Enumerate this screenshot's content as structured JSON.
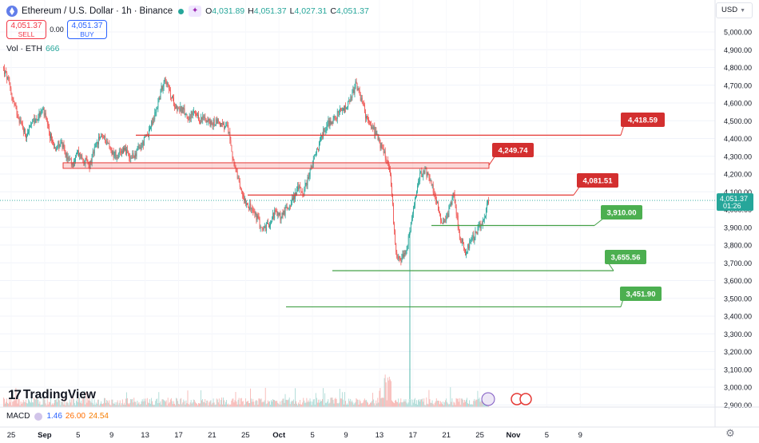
{
  "symbol": {
    "name": "Ethereum / U.S. Dollar",
    "interval": "1h",
    "exchange": "Binance",
    "separator": "·"
  },
  "ohlc": {
    "open_label": "O",
    "open": "4,031.89",
    "high_label": "H",
    "high": "4,051.37",
    "low_label": "L",
    "low": "4,027.31",
    "close_label": "C",
    "close": "4,051.37"
  },
  "trade": {
    "sell_price": "4,051.37",
    "sell_label": "SELL",
    "spread": "0.00",
    "buy_price": "4,051.37",
    "buy_label": "BUY"
  },
  "volume": {
    "label": "Vol · ETH",
    "value": "666"
  },
  "currency": "USD",
  "current_price": {
    "price": "4,051.37",
    "countdown": "01:26",
    "value": 4051.37
  },
  "branding": "TradingView",
  "macd": {
    "label": "MACD",
    "v1": "1.46",
    "v2": "26.00",
    "v3": "24.54"
  },
  "icons": {
    "settings": "gear-icon",
    "logo": "ethereum-logo-icon",
    "share": "share-icon"
  },
  "colors": {
    "bull": "#26a69a",
    "bear": "#ef5350",
    "resistance": "#e53935",
    "support": "#43a047",
    "resistance_label": "#d32f2f",
    "support_label": "#4caf50"
  },
  "chart_data": {
    "type": "candlestick",
    "y_axis": {
      "ticks": [
        "5,000.00",
        "4,900.00",
        "4,800.00",
        "4,700.00",
        "4,600.00",
        "4,500.00",
        "4,400.00",
        "4,300.00",
        "4,200.00",
        "4,100.00",
        "4,000.00",
        "3,900.00",
        "3,800.00",
        "3,700.00",
        "3,600.00",
        "3,500.00",
        "3,400.00",
        "3,300.00",
        "3,200.00",
        "3,100.00",
        "3,000.00",
        "2,900.00"
      ],
      "range": [
        2900,
        5000
      ]
    },
    "x_axis": {
      "ticks": [
        "25",
        "Sep",
        "5",
        "9",
        "13",
        "17",
        "21",
        "25",
        "Oct",
        "5",
        "9",
        "13",
        "17",
        "21",
        "25",
        "Nov",
        "5",
        "9"
      ],
      "bold_ticks": [
        "Sep",
        "Oct",
        "Nov"
      ]
    },
    "approx_closes": [
      4800,
      4720,
      4580,
      4500,
      4420,
      4480,
      4520,
      4560,
      4430,
      4350,
      4380,
      4300,
      4250,
      4320,
      4280,
      4250,
      4350,
      4420,
      4380,
      4320,
      4300,
      4350,
      4280,
      4320,
      4360,
      4420,
      4500,
      4620,
      4750,
      4640,
      4580,
      4560,
      4520,
      4540,
      4500,
      4520,
      4480,
      4500,
      4470,
      4450,
      4250,
      4120,
      4050,
      4000,
      3950,
      3880,
      3920,
      3980,
      3960,
      4000,
      4050,
      4120,
      4100,
      4200,
      4300,
      4400,
      4480,
      4500,
      4540,
      4560,
      4600,
      4700,
      4620,
      4500,
      4460,
      4380,
      4320,
      4200,
      3750,
      3720,
      3800,
      4000,
      4180,
      4230,
      4150,
      4050,
      3920,
      3980,
      4100,
      3850,
      3760,
      3820,
      3880,
      3930,
      4051
    ],
    "levels": [
      {
        "value": 4418.59,
        "label": "4,418.59",
        "kind": "resistance"
      },
      {
        "value": 4249.74,
        "label": "4,249.74",
        "kind": "resistance-zone"
      },
      {
        "value": 4081.51,
        "label": "4,081.51",
        "kind": "resistance"
      },
      {
        "value": 3910.0,
        "label": "3,910.00",
        "kind": "support"
      },
      {
        "value": 3655.56,
        "label": "3,655.56",
        "kind": "support"
      },
      {
        "value": 3451.9,
        "label": "3,451.90",
        "kind": "support"
      }
    ],
    "price_scale_highlight": "4,051.37"
  }
}
